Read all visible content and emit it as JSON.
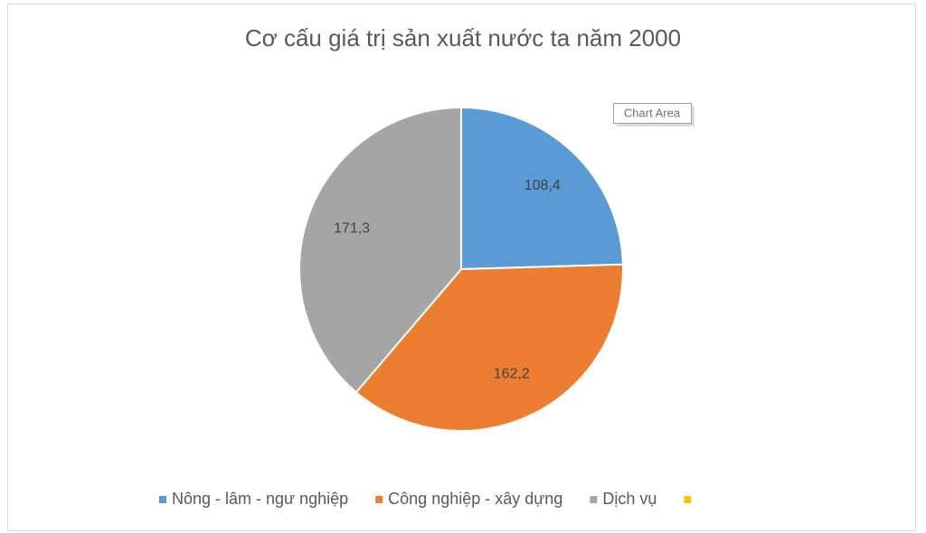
{
  "chart_data": {
    "type": "pie",
    "title": "Cơ cấu giá trị sản xuất nước ta năm 2000",
    "categories": [
      "Nông - lâm - ngư nghiệp",
      "Công nghiệp - xây dựng",
      "Dịch vụ",
      null
    ],
    "values": [
      108.4,
      162.2,
      171.3,
      null
    ],
    "value_labels": [
      "108,4",
      "162,2",
      "171,3",
      null
    ],
    "colors": [
      "#5b9bd5",
      "#ed7d31",
      "#a5a5a5",
      "#ffc000"
    ],
    "legend": "bottom",
    "tooltip": "Chart Area"
  }
}
